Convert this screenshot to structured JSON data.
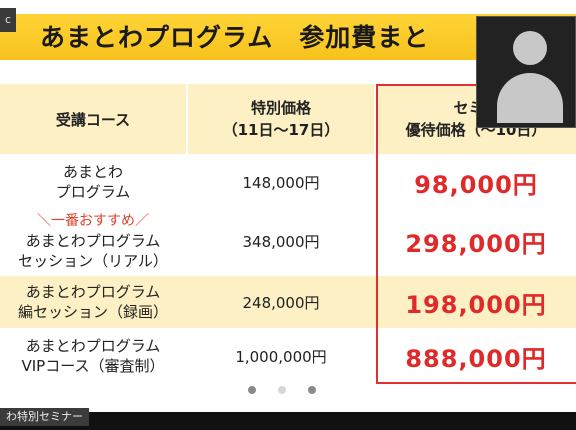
{
  "slide": {
    "title": "あまとわプログラム　参加費まと",
    "corner_tag": "c"
  },
  "table": {
    "headers": {
      "course": "受講コース",
      "special_line1": "特別価格",
      "special_line2": "（11日～17日）",
      "seminar_line1": "セミナ",
      "seminar_line2": "優待価格（～10日）"
    },
    "rows": [
      {
        "recommend": "",
        "course_line1": "あまとわ",
        "course_line2": "プログラム",
        "special_price": "148,000円",
        "seminar_price": "98,000円",
        "bg": "#ffffff"
      },
      {
        "recommend": "＼一番おすすめ／",
        "course_line1": "あまとわプログラム",
        "course_line2": "セッション（リアル）",
        "special_price": "348,000円",
        "seminar_price": "298,000円",
        "bg": "#ffffff"
      },
      {
        "recommend": "",
        "course_line1": "あまとわプログラム",
        "course_line2": "編セッション（録画）",
        "special_price": "248,000円",
        "seminar_price": "198,000円",
        "bg": "#fdf0c4"
      },
      {
        "recommend": "",
        "course_line1": "あまとわプログラム",
        "course_line2": "VIPコース（審査制）",
        "special_price": "1,000,000円",
        "seminar_price": "888,000円",
        "bg": "#ffffff"
      }
    ]
  },
  "pager": {
    "pages": 3
  },
  "participant": {
    "name_label": "わ特別セミナー"
  },
  "colors": {
    "title_bar": "#f7c21c",
    "header_bg": "#fdf0c4",
    "accent_red": "#e02a2a"
  },
  "icons": {
    "avatar": "person-silhouette-icon"
  }
}
